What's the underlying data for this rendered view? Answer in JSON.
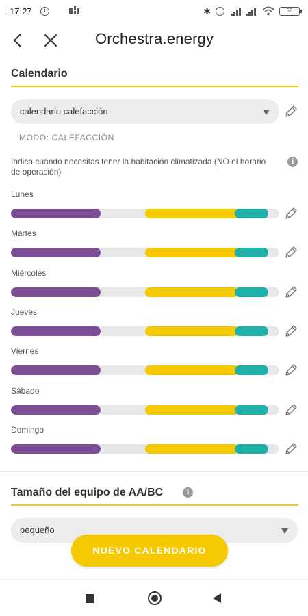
{
  "status_bar": {
    "time": "17:27",
    "battery": "58"
  },
  "app_bar": {
    "title": "Orchestra.energy"
  },
  "calendar_section": {
    "title": "Calendario",
    "selected_calendar": "calendario calefacción",
    "mode": "MODO: CALEFACCIÓN",
    "hint": "Indica cuándo necesitas tener la habitación climatizada (NO el horario de operación)"
  },
  "days": [
    {
      "name": "Lunes",
      "segments": [
        {
          "color": "purple",
          "start": 0.0,
          "end": 0.335
        },
        {
          "color": "yellow",
          "start": 0.5,
          "end": 0.85
        },
        {
          "color": "teal",
          "start": 0.835,
          "end": 0.96
        }
      ]
    },
    {
      "name": "Martes",
      "segments": [
        {
          "color": "purple",
          "start": 0.0,
          "end": 0.335
        },
        {
          "color": "yellow",
          "start": 0.5,
          "end": 0.85
        },
        {
          "color": "teal",
          "start": 0.835,
          "end": 0.96
        }
      ]
    },
    {
      "name": "Miércoles",
      "segments": [
        {
          "color": "purple",
          "start": 0.0,
          "end": 0.335
        },
        {
          "color": "yellow",
          "start": 0.5,
          "end": 0.85
        },
        {
          "color": "teal",
          "start": 0.835,
          "end": 0.96
        }
      ]
    },
    {
      "name": "Jueves",
      "segments": [
        {
          "color": "purple",
          "start": 0.0,
          "end": 0.335
        },
        {
          "color": "yellow",
          "start": 0.5,
          "end": 0.85
        },
        {
          "color": "teal",
          "start": 0.835,
          "end": 0.96
        }
      ]
    },
    {
      "name": "Viernes",
      "segments": [
        {
          "color": "purple",
          "start": 0.0,
          "end": 0.335
        },
        {
          "color": "yellow",
          "start": 0.5,
          "end": 0.85
        },
        {
          "color": "teal",
          "start": 0.835,
          "end": 0.96
        }
      ]
    },
    {
      "name": "Sábado",
      "segments": [
        {
          "color": "purple",
          "start": 0.0,
          "end": 0.335
        },
        {
          "color": "yellow",
          "start": 0.5,
          "end": 0.85
        },
        {
          "color": "teal",
          "start": 0.835,
          "end": 0.96
        }
      ]
    },
    {
      "name": "Domingo",
      "segments": [
        {
          "color": "purple",
          "start": 0.0,
          "end": 0.335
        },
        {
          "color": "yellow",
          "start": 0.5,
          "end": 0.85
        },
        {
          "color": "teal",
          "start": 0.835,
          "end": 0.96
        }
      ]
    }
  ],
  "equipment_section": {
    "title": "Tamaño del equipo de AA/BC",
    "selected_size": "pequeño"
  },
  "cta": {
    "label": "NUEVO CALENDARIO"
  },
  "colors": {
    "accent_yellow": "#f5c900",
    "purple": "#7b4e96",
    "teal": "#1fb0aa",
    "track": "#e8e8e8"
  },
  "icons": {
    "back": "arrow-left-icon",
    "close": "close-icon",
    "edit": "pencil-icon",
    "info": "info-icon",
    "dropdown": "caret-down-icon"
  }
}
